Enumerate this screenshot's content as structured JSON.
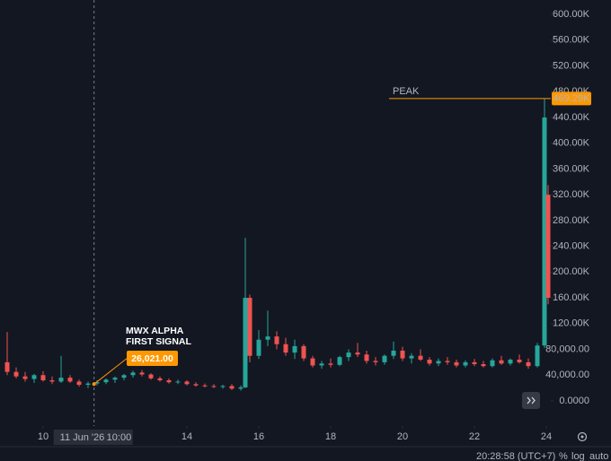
{
  "chart_data": {
    "type": "candlestick",
    "x": [
      9.0,
      9.25,
      9.5,
      9.75,
      10.0,
      10.25,
      10.5,
      10.75,
      11.0,
      11.25,
      11.5,
      11.75,
      12.0,
      12.25,
      12.5,
      12.75,
      13.0,
      13.25,
      13.5,
      13.75,
      14.0,
      14.25,
      14.5,
      14.75,
      15.0,
      15.25,
      15.5,
      15.625,
      15.75,
      16.0,
      16.25,
      16.5,
      16.75,
      17.0,
      17.25,
      17.5,
      17.75,
      18.0,
      18.25,
      18.5,
      18.75,
      19.0,
      19.25,
      19.5,
      19.75,
      20.0,
      20.25,
      20.5,
      20.75,
      21.0,
      21.25,
      21.5,
      21.75,
      22.0,
      22.25,
      22.5,
      22.75,
      23.0,
      23.25,
      23.5,
      23.75,
      23.95,
      24.05
    ],
    "open": [
      60000,
      45000,
      38000,
      34000,
      40000,
      32000,
      30000,
      36000,
      30000,
      25000,
      27000,
      29000,
      33000,
      36000,
      40000,
      44000,
      41000,
      35000,
      32000,
      29000,
      30000,
      26000,
      24000,
      23000,
      22000,
      23000,
      19000,
      21000,
      160000,
      70000,
      95000,
      100000,
      88000,
      75000,
      85000,
      66000,
      55000,
      58000,
      56000,
      68000,
      75000,
      72000,
      62000,
      60000,
      70000,
      78000,
      66000,
      70000,
      64000,
      58000,
      62000,
      60000,
      55000,
      60000,
      57000,
      54000,
      63000,
      58000,
      64000,
      60000,
      54000,
      86000,
      320000
    ],
    "high": [
      107000,
      52000,
      45000,
      42000,
      46000,
      38000,
      70000,
      40000,
      33000,
      30000,
      32000,
      35000,
      38000,
      42000,
      47000,
      48000,
      43000,
      38000,
      35000,
      33000,
      32000,
      29000,
      27000,
      26000,
      25000,
      26000,
      24000,
      253000,
      165000,
      110000,
      140000,
      108000,
      98000,
      95000,
      88000,
      70000,
      62000,
      66000,
      70000,
      80000,
      90000,
      78000,
      68000,
      72000,
      92000,
      84000,
      74000,
      80000,
      68000,
      66000,
      68000,
      64000,
      63000,
      65000,
      62000,
      66000,
      70000,
      66000,
      72000,
      66000,
      90000,
      469290,
      335000
    ],
    "low": [
      40000,
      35000,
      30000,
      28000,
      30000,
      26000,
      28000,
      28000,
      22000,
      20000,
      24000,
      26000,
      28000,
      32000,
      36000,
      38000,
      33000,
      30000,
      27000,
      26000,
      24000,
      22000,
      21000,
      20000,
      19000,
      17000,
      16000,
      20000,
      60000,
      65000,
      85000,
      80000,
      70000,
      65000,
      62000,
      52000,
      50000,
      52000,
      54000,
      62000,
      68000,
      58000,
      55000,
      56000,
      65000,
      62000,
      58000,
      62000,
      55000,
      54000,
      56000,
      52000,
      52000,
      54000,
      52000,
      52000,
      56000,
      55000,
      58000,
      50000,
      52000,
      82000,
      150000
    ],
    "close": [
      45000,
      38000,
      34000,
      40000,
      32000,
      30000,
      36000,
      30000,
      25000,
      27000,
      29000,
      33000,
      36000,
      40000,
      44000,
      41000,
      35000,
      32000,
      29000,
      30000,
      26000,
      24000,
      23000,
      22000,
      23000,
      19000,
      21000,
      160000,
      70000,
      95000,
      100000,
      88000,
      75000,
      85000,
      66000,
      55000,
      58000,
      56000,
      68000,
      75000,
      72000,
      62000,
      60000,
      70000,
      78000,
      66000,
      70000,
      64000,
      58000,
      62000,
      60000,
      55000,
      60000,
      57000,
      54000,
      63000,
      58000,
      64000,
      60000,
      54000,
      86000,
      440000,
      160000
    ],
    "up_color": "#26a69a",
    "down_color": "#ef5350",
    "xlim": [
      8.8,
      24.125
    ],
    "xticks": [
      10,
      14,
      16,
      18,
      20,
      22,
      24
    ],
    "ylim": [
      -39000,
      622300
    ],
    "yticks": [
      {
        "value": 0,
        "label": "0.0000"
      },
      {
        "value": 40000,
        "label": "40,000.00"
      },
      {
        "value": 80000,
        "label": "80,000.00"
      },
      {
        "value": 120000,
        "label": "120.00K"
      },
      {
        "value": 160000,
        "label": "160.00K"
      },
      {
        "value": 200000,
        "label": "200.00K"
      },
      {
        "value": 240000,
        "label": "240.00K"
      },
      {
        "value": 280000,
        "label": "280.00K"
      },
      {
        "value": 320000,
        "label": "320.00K"
      },
      {
        "value": 360000,
        "label": "360.00K"
      },
      {
        "value": 400000,
        "label": "400.00K"
      },
      {
        "value": 440000,
        "label": "440.00K"
      },
      {
        "value": 480000,
        "label": "480.00K"
      },
      {
        "value": 520000,
        "label": "520.00K"
      },
      {
        "value": 560000,
        "label": "560.00K"
      },
      {
        "value": 600000,
        "label": "600.00K"
      }
    ],
    "log_scale": false,
    "grid": false,
    "crosshair": {
      "x": 11.4167,
      "date_label": "11 Jun '26",
      "time_label": "10:00"
    },
    "signal": {
      "lines": [
        "MWX ALPHA",
        "FIRST SIGNAL"
      ],
      "value": 26021,
      "value_label": "26,021.00",
      "color": "#ff9800"
    },
    "peak": {
      "label": "PEAK",
      "value": 469290,
      "value_label": "469.29K",
      "color": "#ff9800"
    },
    "footer": {
      "clock": "20:28:58 (UTC+7)",
      "percent": "%",
      "log": "log",
      "auto": "auto"
    }
  }
}
